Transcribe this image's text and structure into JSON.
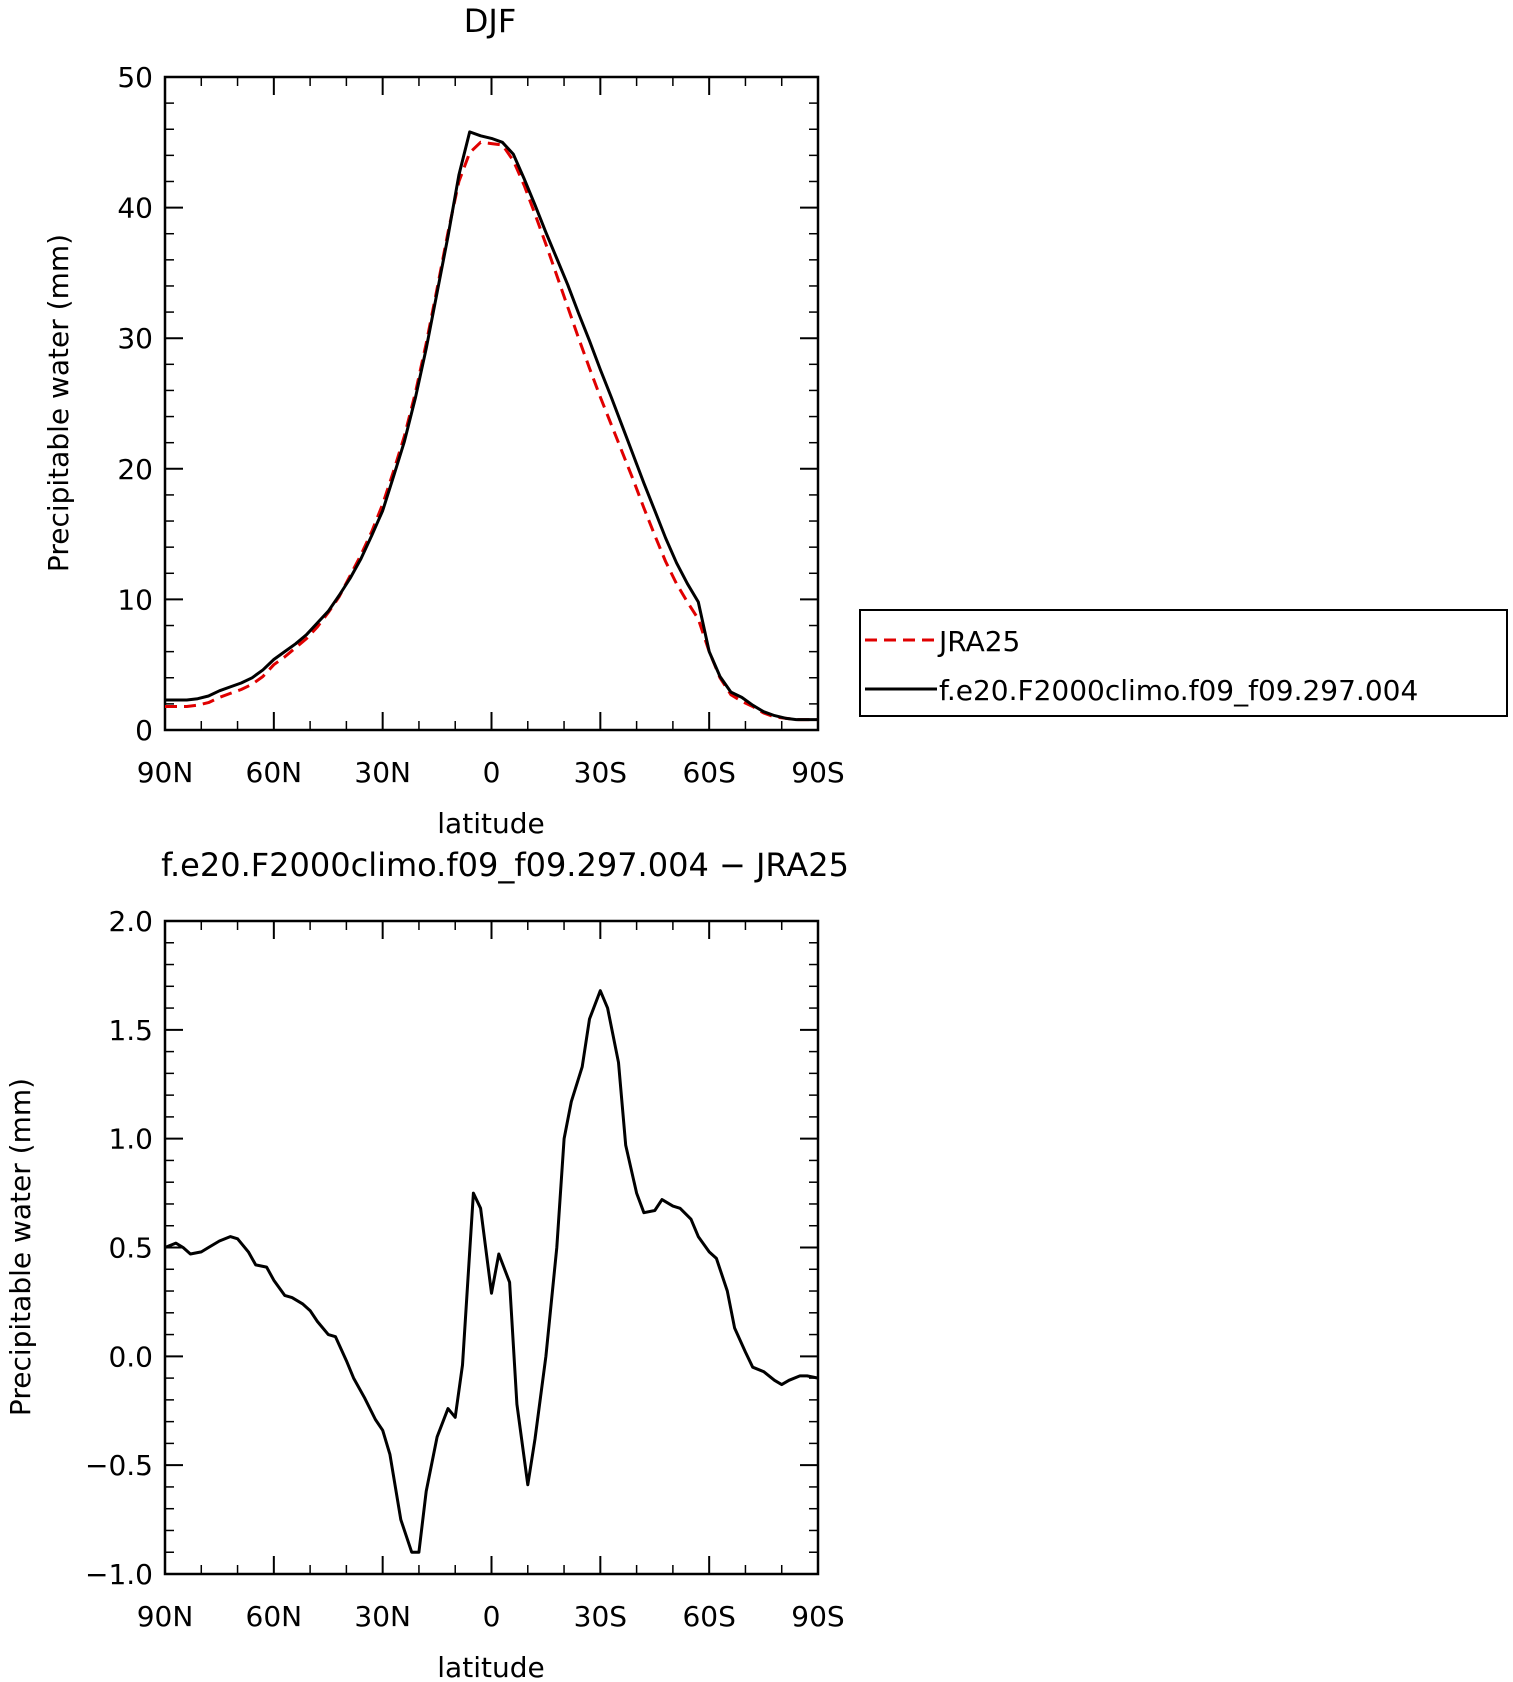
{
  "chart_data": [
    {
      "type": "line",
      "title": "DJF",
      "xlabel": "latitude",
      "ylabel": "Precipitable water (mm)",
      "xlim": [
        90,
        -90
      ],
      "ylim": [
        0,
        50
      ],
      "x_ticks": [
        90,
        60,
        30,
        0,
        -30,
        -60,
        -90
      ],
      "x_tick_labels": [
        "90N",
        "60N",
        "30N",
        "0",
        "30S",
        "60S",
        "90S"
      ],
      "y_ticks": [
        0,
        10,
        20,
        30,
        40,
        50
      ],
      "y_tick_labels": [
        "0",
        "10",
        "20",
        "30",
        "40",
        "50"
      ],
      "legend_position": "right",
      "series": [
        {
          "name": "JRA25",
          "color": "#e00000",
          "dash": "dashed",
          "x": [
            90,
            87,
            84,
            81,
            78,
            75,
            72,
            69,
            66,
            63,
            60,
            57,
            54,
            51,
            48,
            45,
            42,
            39,
            36,
            33,
            30,
            27,
            24,
            21,
            18,
            15,
            12,
            9,
            6,
            3,
            0,
            -3,
            -6,
            -9,
            -12,
            -15,
            -18,
            -21,
            -24,
            -27,
            -30,
            -33,
            -36,
            -39,
            -42,
            -45,
            -48,
            -51,
            -54,
            -57,
            -60,
            -63,
            -66,
            -69,
            -72,
            -75,
            -78,
            -81,
            -84,
            -87,
            -90
          ],
          "y": [
            1.8,
            1.8,
            1.8,
            1.9,
            2.1,
            2.5,
            2.8,
            3.1,
            3.5,
            4.1,
            5.0,
            5.6,
            6.3,
            7.0,
            7.9,
            9.0,
            10.2,
            11.8,
            13.4,
            15.2,
            17.3,
            19.8,
            22.5,
            25.8,
            29.6,
            33.8,
            38.1,
            42.0,
            44.2,
            45.0,
            44.9,
            44.8,
            43.6,
            41.7,
            39.5,
            37.2,
            34.8,
            32.4,
            30.0,
            27.7,
            25.5,
            23.4,
            21.3,
            19.2,
            17.0,
            14.9,
            12.9,
            11.2,
            9.8,
            8.5,
            6.0,
            4.0,
            2.7,
            2.2,
            1.8,
            1.3,
            1.0,
            0.9,
            0.8,
            0.8,
            0.8
          ]
        },
        {
          "name": "f.e20.F2000climo.f09_f09.297.004",
          "color": "#000000",
          "dash": "solid",
          "x": [
            90,
            87,
            84,
            81,
            78,
            75,
            72,
            69,
            66,
            63,
            60,
            57,
            54,
            51,
            48,
            45,
            42,
            39,
            36,
            33,
            30,
            27,
            24,
            21,
            18,
            15,
            12,
            9,
            6,
            3,
            0,
            -3,
            -6,
            -9,
            -12,
            -15,
            -18,
            -21,
            -24,
            -27,
            -30,
            -33,
            -36,
            -39,
            -42,
            -45,
            -48,
            -51,
            -54,
            -57,
            -60,
            -63,
            -66,
            -69,
            -72,
            -75,
            -78,
            -81,
            -84,
            -87,
            -90
          ],
          "y": [
            2.3,
            2.3,
            2.3,
            2.4,
            2.6,
            3.0,
            3.3,
            3.6,
            4.0,
            4.6,
            5.4,
            6.0,
            6.6,
            7.3,
            8.2,
            9.1,
            10.3,
            11.6,
            13.1,
            14.9,
            16.8,
            19.4,
            22.1,
            25.4,
            29.2,
            33.5,
            37.8,
            42.5,
            45.8,
            45.5,
            45.3,
            45.0,
            44.1,
            42.2,
            40.2,
            38.1,
            36.1,
            34.1,
            31.9,
            29.8,
            27.6,
            25.5,
            23.3,
            21.1,
            18.9,
            16.8,
            14.7,
            12.8,
            11.2,
            9.8,
            6.0,
            4.1,
            2.9,
            2.5,
            1.9,
            1.4,
            1.1,
            0.9,
            0.8,
            0.8,
            0.8
          ]
        }
      ]
    },
    {
      "type": "line",
      "title": "f.e20.F2000climo.f09_f09.297.004 − JRA25",
      "xlabel": "latitude",
      "ylabel": "Precipitable water (mm)",
      "xlim": [
        90,
        -90
      ],
      "ylim": [
        -1.0,
        2.0
      ],
      "x_ticks": [
        90,
        60,
        30,
        0,
        -30,
        -60,
        -90
      ],
      "x_tick_labels": [
        "90N",
        "60N",
        "30N",
        "0",
        "30S",
        "60S",
        "90S"
      ],
      "y_ticks": [
        -1.0,
        -0.5,
        0.0,
        0.5,
        1.0,
        1.5,
        2.0
      ],
      "y_tick_labels": [
        "−1.0",
        "−0.5",
        "0.0",
        "0.5",
        "1.0",
        "1.5",
        "2.0"
      ],
      "series": [
        {
          "color": "#000000",
          "dash": "solid",
          "x": [
            90,
            87,
            85,
            83,
            80,
            78,
            75,
            72,
            70,
            67,
            65,
            62,
            60,
            57,
            55,
            52,
            50,
            48,
            45,
            43,
            40,
            38,
            35,
            32,
            30,
            28,
            25,
            22,
            20,
            18,
            15,
            12,
            10,
            8,
            5,
            3,
            0,
            -2,
            -5,
            -7,
            -10,
            -12,
            -15,
            -18,
            -20,
            -22,
            -25,
            -27,
            -30,
            -32,
            -35,
            -37,
            -40,
            -42,
            -45,
            -47,
            -50,
            -52,
            -55,
            -57,
            -60,
            -62,
            -65,
            -67,
            -70,
            -72,
            -75,
            -78,
            -80,
            -82,
            -85,
            -87,
            -90
          ],
          "y": [
            0.5,
            0.52,
            0.5,
            0.47,
            0.48,
            0.5,
            0.53,
            0.55,
            0.54,
            0.48,
            0.42,
            0.41,
            0.35,
            0.28,
            0.27,
            0.24,
            0.21,
            0.16,
            0.1,
            0.09,
            -0.02,
            -0.1,
            -0.19,
            -0.29,
            -0.34,
            -0.45,
            -0.75,
            -0.9,
            -0.9,
            -0.62,
            -0.37,
            -0.24,
            -0.28,
            -0.04,
            0.75,
            0.68,
            0.29,
            0.47,
            0.34,
            -0.22,
            -0.59,
            -0.38,
            0.0,
            0.5,
            1.0,
            1.17,
            1.33,
            1.55,
            1.68,
            1.6,
            1.35,
            0.97,
            0.75,
            0.66,
            0.67,
            0.72,
            0.69,
            0.68,
            0.63,
            0.55,
            0.48,
            0.45,
            0.3,
            0.13,
            0.02,
            -0.05,
            -0.07,
            -0.11,
            -0.13,
            -0.11,
            -0.09,
            -0.09,
            -0.1
          ]
        }
      ]
    }
  ]
}
